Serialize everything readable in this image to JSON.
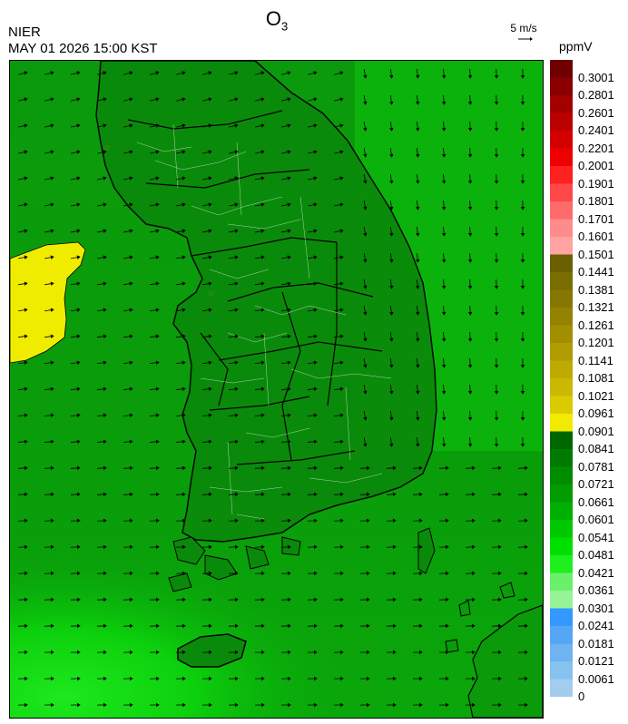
{
  "header": {
    "title_main": "O",
    "title_sub": "3",
    "agency": "NIER",
    "timestamp": "MAY 01 2026 15:00 KST",
    "wind_reference": "5 m/s",
    "units": "ppmV"
  },
  "colorbar": {
    "levels": [
      "0.3001",
      "0.2801",
      "0.2601",
      "0.2401",
      "0.2201",
      "0.2001",
      "0.1901",
      "0.1801",
      "0.1701",
      "0.1601",
      "0.1501",
      "0.1441",
      "0.1381",
      "0.1321",
      "0.1261",
      "0.1201",
      "0.1141",
      "0.1081",
      "0.1021",
      "0.0961",
      "0.0901",
      "0.0841",
      "0.0781",
      "0.0721",
      "0.0661",
      "0.0601",
      "0.0541",
      "0.0481",
      "0.0421",
      "0.0361",
      "0.0301",
      "0.0241",
      "0.0181",
      "0.0121",
      "0.0061",
      "0"
    ],
    "colors": [
      "#6e0000",
      "#8a0000",
      "#a30000",
      "#bb0000",
      "#d40000",
      "#ee0000",
      "#ff2020",
      "#ff4848",
      "#ff6a6a",
      "#ff8c8c",
      "#ffa3a3",
      "#6b5f00",
      "#7a6d00",
      "#867700",
      "#948300",
      "#a28f00",
      "#b09c00",
      "#beaa00",
      "#ccb800",
      "#dccb00",
      "#f2ea00",
      "#006600",
      "#007a00",
      "#008c00",
      "#009c00",
      "#00b000",
      "#00c800",
      "#00e000",
      "#1ef01e",
      "#6af06a",
      "#96f396",
      "#3399ff",
      "#55a6f5",
      "#6fb3f0",
      "#87c1ee",
      "#a3cdef"
    ]
  },
  "map": {
    "description_icon": "ozone-concentration-map",
    "wind_field": "vectors"
  }
}
